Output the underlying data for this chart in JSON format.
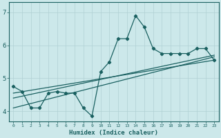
{
  "xlabel": "Humidex (Indice chaleur)",
  "ylabel": "",
  "bg_color": "#cce8ea",
  "grid_color": "#b0d0d4",
  "line_color": "#1a6060",
  "xlim": [
    -0.5,
    23.5
  ],
  "ylim": [
    3.7,
    7.3
  ],
  "xticks": [
    0,
    1,
    2,
    3,
    4,
    5,
    6,
    7,
    8,
    9,
    10,
    11,
    12,
    13,
    14,
    15,
    16,
    17,
    18,
    19,
    20,
    21,
    22,
    23
  ],
  "yticks": [
    4,
    5,
    6,
    7
  ],
  "series1_x": [
    0,
    1,
    2,
    3,
    4,
    5,
    6,
    7,
    8,
    9,
    10,
    11,
    12,
    13,
    14,
    15,
    16,
    17,
    18,
    19,
    20,
    21,
    22,
    23
  ],
  "series1_y": [
    4.75,
    4.6,
    4.1,
    4.1,
    4.55,
    4.6,
    4.55,
    4.55,
    4.1,
    3.85,
    5.2,
    5.5,
    6.2,
    6.2,
    6.9,
    6.55,
    5.9,
    5.75,
    5.75,
    5.75,
    5.75,
    5.9,
    5.9,
    5.55
  ],
  "line2_x": [
    0,
    23
  ],
  "line2_y": [
    4.55,
    5.55
  ],
  "line3_x": [
    0,
    23
  ],
  "line3_y": [
    4.4,
    5.7
  ],
  "line4_x": [
    0,
    23
  ],
  "line4_y": [
    4.1,
    5.65
  ]
}
